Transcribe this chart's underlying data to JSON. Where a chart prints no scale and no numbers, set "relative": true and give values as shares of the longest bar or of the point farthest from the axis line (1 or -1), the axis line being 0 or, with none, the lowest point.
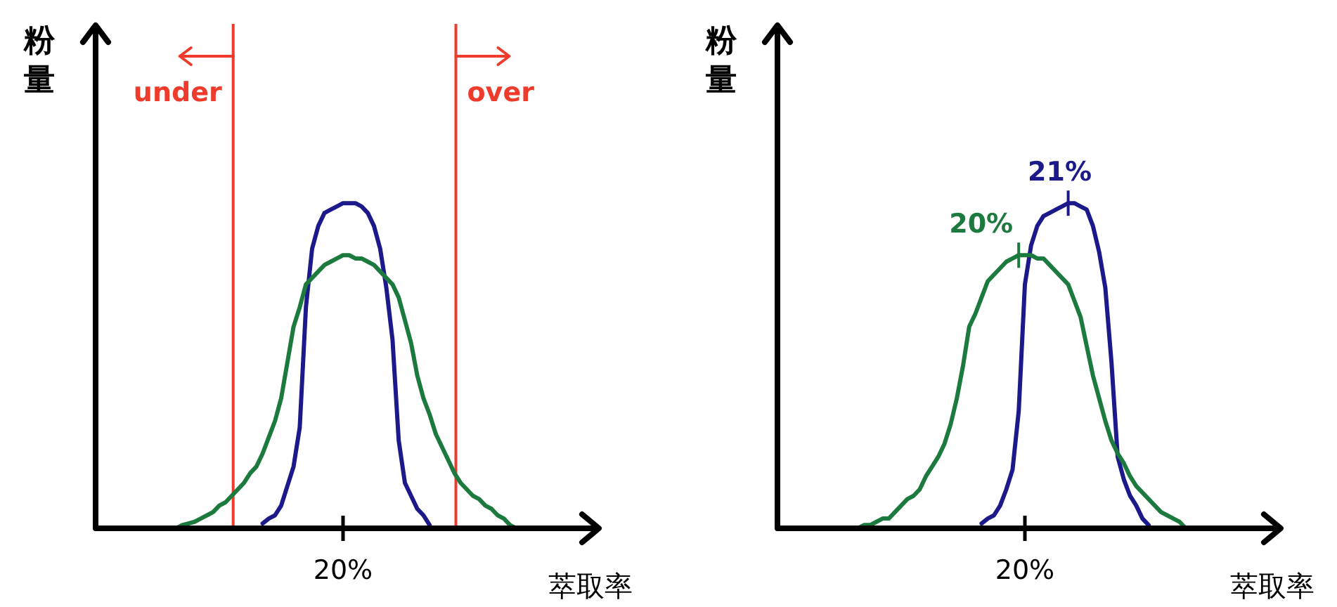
{
  "chart_data": [
    {
      "type": "line",
      "relative": true,
      "xlabel": "萃取率",
      "ylabel": "粉量",
      "categories": [
        null,
        null,
        null,
        null,
        null,
        null,
        null,
        null,
        null,
        null,
        null,
        null,
        null,
        null,
        null,
        null,
        null,
        null,
        null,
        null,
        null,
        null,
        null,
        null,
        null,
        null,
        null,
        null,
        null,
        null,
        null,
        null,
        null,
        null,
        null,
        null,
        null,
        null,
        null,
        null,
        null,
        null,
        null,
        null,
        null,
        null,
        null,
        null,
        null,
        null,
        null,
        null,
        null,
        null,
        null,
        null,
        null,
        null,
        null,
        null,
        null,
        null,
        null,
        null,
        null,
        null,
        null,
        null,
        null,
        null,
        null,
        null,
        null,
        null,
        null,
        null,
        null,
        null,
        null,
        null,
        null
      ],
      "annotations": [
        "20%"
      ],
      "series": [
        {
          "color": "#1c1a8a",
          "values": [
            null,
            null,
            null,
            null,
            null,
            null,
            null,
            null,
            null,
            null,
            null,
            null,
            null,
            null,
            null,
            null,
            null,
            null,
            null,
            null,
            null,
            null,
            null,
            null,
            null,
            null,
            null,
            0.015,
            0.03,
            0.04,
            0.07,
            0.13,
            0.19,
            0.31,
            0.68,
            0.86,
            0.93,
            0.97,
            0.98,
            0.99,
            1,
            1,
            1,
            0.99,
            0.97,
            0.93,
            0.86,
            0.74,
            0.58,
            0.27,
            0.14,
            0.1,
            0.06,
            0.04,
            0.01,
            null,
            null,
            null,
            null,
            null,
            null,
            null,
            null,
            null,
            null,
            null,
            null,
            null,
            null,
            null,
            null,
            null,
            null,
            null,
            null,
            null,
            null,
            null,
            null,
            null,
            null
          ]
        },
        {
          "color": "#1d7a3e",
          "values": [
            null,
            null,
            null,
            null,
            null,
            null,
            null,
            null,
            null,
            null,
            null,
            null,
            null,
            0,
            0.01,
            0.015,
            0.02,
            0.03,
            0.04,
            0.05,
            0.07,
            0.08,
            0.1,
            0.12,
            0.14,
            0.17,
            0.19,
            0.23,
            0.28,
            0.33,
            0.4,
            0.51,
            0.62,
            0.68,
            0.75,
            0.77,
            0.79,
            0.81,
            0.82,
            0.83,
            0.84,
            0.84,
            0.83,
            0.83,
            0.82,
            0.81,
            0.79,
            0.77,
            0.75,
            0.71,
            0.64,
            0.57,
            0.47,
            0.4,
            0.35,
            0.29,
            0.25,
            0.21,
            0.17,
            0.14,
            0.12,
            0.1,
            0.09,
            0.07,
            0.06,
            0.04,
            0.03,
            0.01,
            0,
            null,
            null,
            null,
            null,
            null,
            null,
            null,
            null,
            null,
            null,
            null,
            null
          ]
        }
      ],
      "ref_lines": [
        {
          "axis": "x",
          "label": "under",
          "color": "#ee3b2c"
        },
        {
          "axis": "x",
          "label": "over",
          "color": "#ee3b2c"
        }
      ]
    },
    {
      "type": "line",
      "relative": true,
      "xlabel": "萃取率",
      "ylabel": "粉量",
      "categories": [
        null,
        null,
        null,
        null,
        null,
        null,
        null,
        null,
        null,
        null,
        null,
        null,
        null,
        null,
        null,
        null,
        null,
        null,
        null,
        null,
        null,
        null,
        null,
        null,
        null,
        null,
        null,
        null,
        null,
        null,
        null,
        null,
        null,
        null,
        null,
        null,
        null,
        null,
        null,
        null,
        null,
        null,
        null,
        null,
        null,
        null,
        null,
        null,
        null,
        null,
        null,
        null,
        null,
        null,
        null,
        null,
        null,
        null,
        null,
        null,
        null,
        null,
        null,
        null,
        null,
        null,
        null,
        null,
        null,
        null,
        null,
        null,
        null,
        null,
        null,
        null,
        null,
        null,
        null,
        null,
        null
      ],
      "series": [
        {
          "color": "#1c1a8a",
          "values": [
            null,
            null,
            null,
            null,
            null,
            null,
            null,
            null,
            null,
            null,
            null,
            null,
            null,
            null,
            null,
            null,
            null,
            null,
            null,
            null,
            null,
            null,
            null,
            null,
            null,
            null,
            null,
            null,
            null,
            null,
            null,
            null,
            null,
            0.015,
            0.03,
            0.04,
            0.07,
            0.12,
            0.18,
            0.36,
            0.75,
            0.87,
            0.93,
            0.96,
            0.97,
            0.98,
            0.99,
            1,
            1,
            0.99,
            0.98,
            0.93,
            0.85,
            0.74,
            0.51,
            0.22,
            0.15,
            0.1,
            0.07,
            0.03,
            0.01,
            null,
            null,
            null,
            null,
            null,
            null,
            null,
            null,
            null,
            null,
            null,
            null,
            null,
            null,
            null,
            null,
            null,
            null,
            null,
            null
          ]
        },
        {
          "color": "#1d7a3e",
          "values": [
            null,
            null,
            null,
            null,
            null,
            null,
            null,
            null,
            null,
            null,
            null,
            null,
            null,
            0,
            0.01,
            0.01,
            0.02,
            0.03,
            0.03,
            0.05,
            0.07,
            0.09,
            0.1,
            0.12,
            0.16,
            0.19,
            0.22,
            0.26,
            0.32,
            0.4,
            0.5,
            0.62,
            0.66,
            0.71,
            0.76,
            0.78,
            0.8,
            0.82,
            0.83,
            0.84,
            0.84,
            0.84,
            0.83,
            0.83,
            0.81,
            0.79,
            0.77,
            0.75,
            0.7,
            0.65,
            0.56,
            0.47,
            0.4,
            0.33,
            0.27,
            0.23,
            0.2,
            0.16,
            0.13,
            0.11,
            0.09,
            0.07,
            0.05,
            0.04,
            0.03,
            0.02,
            0,
            null,
            null,
            null,
            null,
            null,
            null,
            null,
            null,
            null,
            null,
            null,
            null,
            null,
            null
          ]
        }
      ],
      "annotations": [
        "20%",
        "21%",
        "20%"
      ]
    }
  ]
}
